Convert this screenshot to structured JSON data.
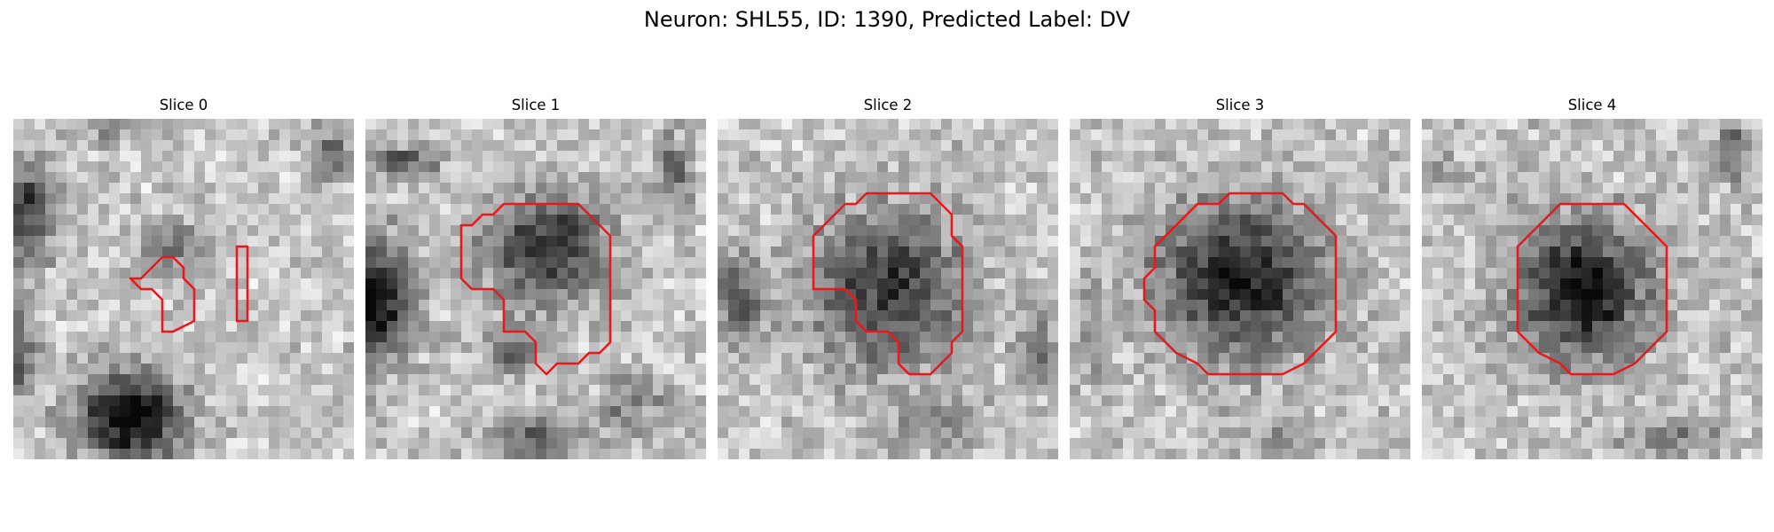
{
  "figure": {
    "title": "Neuron: SHL55, ID: 1390, Predicted Label: DV",
    "contour_color": "#e8191c"
  },
  "panels": [
    {
      "title": "Slice 0"
    },
    {
      "title": "Slice 1"
    },
    {
      "title": "Slice 2"
    },
    {
      "title": "Slice 3"
    },
    {
      "title": "Slice 4"
    }
  ]
}
